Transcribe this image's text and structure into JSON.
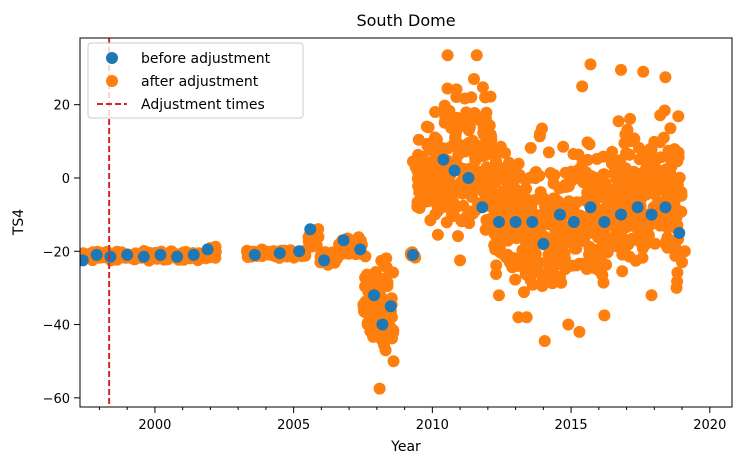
{
  "chart_data": {
    "type": "scatter",
    "title": "South Dome",
    "xlabel": "Year",
    "ylabel": "TS4",
    "xlim": [
      1997.3,
      2020.8
    ],
    "ylim": [
      -62.5,
      38.2
    ],
    "x_ticks": [
      2000,
      2005,
      2010,
      2015,
      2020
    ],
    "x_minor_ticks": [
      1998,
      1999,
      2001,
      2002,
      2003,
      2004,
      2006,
      2007,
      2008,
      2009,
      2011,
      2012,
      2013,
      2014,
      2016,
      2017,
      2018,
      2019
    ],
    "y_ticks": [
      -60,
      -40,
      -20,
      0,
      20
    ],
    "tick_labels": {
      "x": [
        "2000",
        "2005",
        "2010",
        "2015",
        "2020"
      ],
      "y": [
        "−60",
        "−40",
        "−20",
        "0",
        "20"
      ]
    },
    "legend_placement": "upper-left",
    "grid": false,
    "series": [
      {
        "name": "before adjustment",
        "color": "#1f77b4",
        "points": [
          [
            1997.4,
            -22.5
          ],
          [
            1997.9,
            -21.0
          ],
          [
            1998.4,
            -21.5
          ],
          [
            1999.0,
            -21.0
          ],
          [
            1999.6,
            -21.5
          ],
          [
            2000.2,
            -21.0
          ],
          [
            2000.8,
            -21.5
          ],
          [
            2001.4,
            -21.0
          ],
          [
            2001.9,
            -19.5
          ],
          [
            2003.6,
            -21.0
          ],
          [
            2004.5,
            -20.5
          ],
          [
            2005.2,
            -20.0
          ],
          [
            2005.6,
            -14.0
          ],
          [
            2006.1,
            -22.5
          ],
          [
            2006.8,
            -17.0
          ],
          [
            2007.4,
            -19.5
          ],
          [
            2007.9,
            -32.0
          ],
          [
            2008.2,
            -40.0
          ],
          [
            2008.5,
            -35.0
          ],
          [
            2009.3,
            -21.0
          ],
          [
            2010.4,
            5.0
          ],
          [
            2010.8,
            2.0
          ],
          [
            2011.3,
            0.0
          ],
          [
            2011.8,
            -8.0
          ],
          [
            2012.4,
            -12.0
          ],
          [
            2013.0,
            -12.0
          ],
          [
            2013.6,
            -12.0
          ],
          [
            2014.0,
            -18.0
          ],
          [
            2014.6,
            -10.0
          ],
          [
            2015.1,
            -12.0
          ],
          [
            2015.7,
            -8.0
          ],
          [
            2016.2,
            -12.0
          ],
          [
            2016.8,
            -10.0
          ],
          [
            2017.4,
            -8.0
          ],
          [
            2017.9,
            -10.0
          ],
          [
            2018.4,
            -8.0
          ],
          [
            2018.9,
            -15.0
          ]
        ]
      },
      {
        "name": "after adjustment",
        "color": "#ff7f0e",
        "segments": [
          {
            "x": [
              1997.3,
              2001.95
            ],
            "center": -21.2,
            "spread": 1.6
          },
          {
            "x": [
              2001.95,
              2002.2
            ],
            "center": -20.0,
            "spread": 3.5
          },
          {
            "x": [
              2003.3,
              2005.5
            ],
            "center": -20.6,
            "spread": 1.4
          },
          {
            "x": [
              2005.5,
              2005.9
            ],
            "center": -16.5,
            "spread": 4.0
          },
          {
            "x": [
              2005.9,
              2006.6
            ],
            "center": -22.0,
            "spread": 2.8
          },
          {
            "x": [
              2006.6,
              2007.5
            ],
            "center": -18.5,
            "spread": 3.0
          },
          {
            "x": [
              2007.5,
              2008.0
            ],
            "center": -32.0,
            "spread": 16.0
          },
          {
            "x": [
              2008.0,
              2008.6
            ],
            "center": -36.0,
            "spread": 18.0
          },
          {
            "x": [
              2009.2,
              2009.4
            ],
            "center": -21.0,
            "spread": 1.0
          },
          {
            "x": [
              2009.4,
              2010.4
            ],
            "center": 0.0,
            "spread": 16.0
          },
          {
            "x": [
              2010.4,
              2012.2
            ],
            "center": 2.0,
            "spread": 30.0
          },
          {
            "x": [
              2012.2,
              2013.3
            ],
            "center": -10.0,
            "spread": 26.0
          },
          {
            "x": [
              2013.3,
              2014.4
            ],
            "center": -14.0,
            "spread": 30.0
          },
          {
            "x": [
              2014.4,
              2016.4
            ],
            "center": -10.0,
            "spread": 26.0
          },
          {
            "x": [
              2016.4,
              2017.8
            ],
            "center": -6.0,
            "spread": 30.0
          },
          {
            "x": [
              2017.8,
              2019.0
            ],
            "center": -4.0,
            "spread": 28.0
          }
        ],
        "extremes": [
          [
            2010.55,
            33.5
          ],
          [
            2011.6,
            33.5
          ],
          [
            2011.5,
            27.0
          ],
          [
            2011.9,
            22.0
          ],
          [
            2015.7,
            31.0
          ],
          [
            2016.8,
            29.5
          ],
          [
            2017.6,
            29.0
          ],
          [
            2018.4,
            27.5
          ],
          [
            2008.1,
            -57.5
          ],
          [
            2008.6,
            -50.0
          ],
          [
            2014.05,
            -44.5
          ],
          [
            2014.9,
            -40.0
          ],
          [
            2015.3,
            -42.0
          ],
          [
            2016.2,
            -37.5
          ],
          [
            2013.1,
            -38.0
          ],
          [
            2013.4,
            -38.0
          ],
          [
            2009.8,
            14.0
          ],
          [
            2010.1,
            18.0
          ],
          [
            2009.3,
            4.5
          ],
          [
            2010.2,
            -9.0
          ],
          [
            2010.2,
            -15.5
          ],
          [
            2011.0,
            -22.5
          ],
          [
            2019.0,
            -23.0
          ],
          [
            2019.1,
            -20.0
          ],
          [
            2012.4,
            -32.0
          ],
          [
            2018.8,
            -30.0
          ],
          [
            2017.9,
            -32.0
          ],
          [
            2015.4,
            25.0
          ],
          [
            2013.95,
            13.5
          ],
          [
            2014.2,
            7.0
          ]
        ]
      }
    ],
    "adjustment_times": {
      "name": "Adjustment times",
      "color": "#d62728",
      "x": [
        1998.35
      ]
    }
  }
}
